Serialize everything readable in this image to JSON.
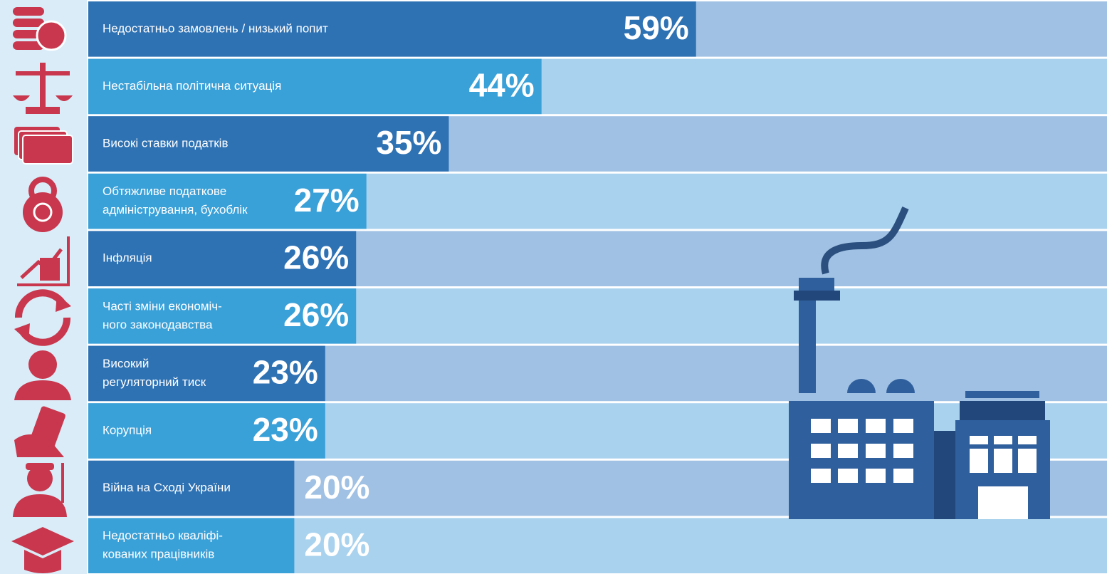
{
  "chart_data": {
    "type": "bar",
    "orientation": "horizontal",
    "categories": [
      [
        "Недостатньо замовлень / низький попит"
      ],
      [
        "Нестабільна політична ситуація"
      ],
      [
        "Високі ставки податків"
      ],
      [
        "Обтяжливе податкове",
        "адміністрування, бухоблік"
      ],
      [
        "Інфляція"
      ],
      [
        "Часті зміни економіч-",
        "ного законодавства"
      ],
      [
        "Високий",
        "регуляторний тиск"
      ],
      [
        "Корупція"
      ],
      [
        "Війна на Сході України"
      ],
      [
        "Недостатньо кваліфі-",
        "кованих працівників"
      ]
    ],
    "values": [
      59,
      44,
      35,
      27,
      26,
      26,
      23,
      23,
      20,
      20
    ],
    "value_labels": [
      "59%",
      "44%",
      "35%",
      "27%",
      "26%",
      "26%",
      "23%",
      "23%",
      "20%",
      "20%"
    ],
    "colors": [
      "#2e72b4",
      "#3aa0d8"
    ],
    "background_colors": [
      "#a0c1e3",
      "#a9d2ee"
    ]
  }
}
